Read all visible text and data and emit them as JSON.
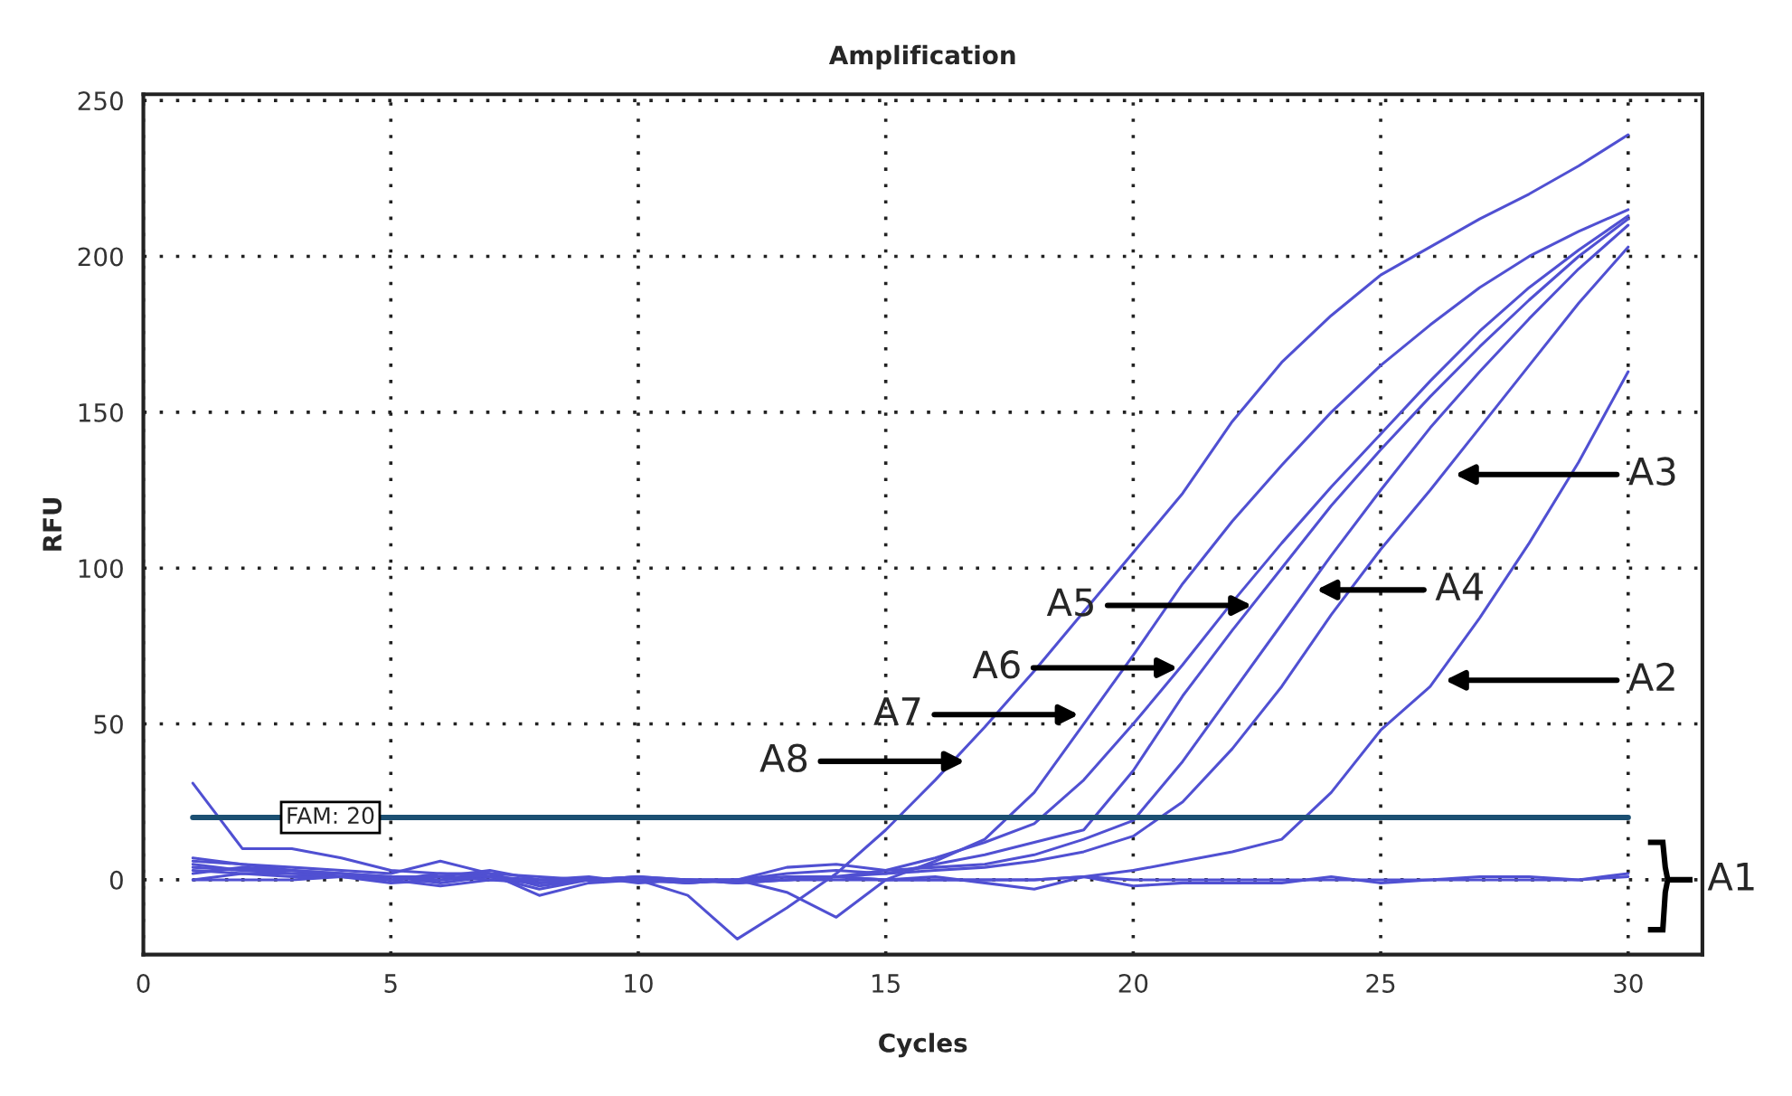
{
  "chart_data": {
    "type": "line",
    "title": "Amplification",
    "xlabel": "Cycles",
    "ylabel": "RFU",
    "x": [
      1,
      2,
      3,
      4,
      5,
      6,
      7,
      8,
      9,
      10,
      11,
      12,
      13,
      14,
      15,
      16,
      17,
      18,
      19,
      20,
      21,
      22,
      23,
      24,
      25,
      26,
      27,
      28,
      29,
      30
    ],
    "series": [
      {
        "color": "#5050d2",
        "values": [
          6,
          5,
          3,
          1,
          0,
          -2,
          0,
          -1,
          0,
          1,
          0,
          -1,
          0,
          0,
          0,
          1,
          -1,
          -3,
          1,
          -2,
          -1,
          -1,
          -1,
          1,
          -1,
          0,
          1,
          1,
          0,
          2
        ]
      },
      {
        "color": "#5050d2",
        "values": [
          0,
          0,
          0,
          1,
          -1,
          0,
          1,
          0,
          0,
          0,
          0,
          0,
          0,
          1,
          0,
          0,
          0,
          0,
          1,
          0,
          0,
          0,
          0,
          0,
          0,
          0,
          0,
          0,
          0,
          1
        ]
      },
      {
        "color": "#5050d2",
        "values": [
          0,
          2,
          1,
          1,
          1,
          -1,
          1,
          -3,
          0,
          1,
          -1,
          0,
          0,
          1,
          0,
          0,
          0,
          0,
          1,
          3,
          6,
          9,
          13,
          28,
          48,
          62,
          84,
          108,
          134,
          163
        ]
      },
      {
        "color": "#5050d2",
        "values": [
          2,
          4,
          3,
          2,
          0,
          1,
          3,
          0,
          1,
          -1,
          0,
          0,
          2,
          3,
          2,
          3,
          4,
          6,
          9,
          14,
          25,
          42,
          62,
          85,
          106,
          125,
          145,
          165,
          185,
          203
        ]
      },
      {
        "color": "#5050d2",
        "values": [
          5,
          3,
          2,
          2,
          1,
          0,
          2,
          -5,
          -1,
          0,
          -1,
          0,
          4,
          5,
          3,
          4,
          5,
          8,
          13,
          19,
          38,
          60,
          82,
          104,
          125,
          145,
          163,
          180,
          196,
          210
        ]
      },
      {
        "color": "#5050d2",
        "values": [
          7,
          5,
          4,
          3,
          2,
          6,
          2,
          -2,
          0,
          1,
          0,
          -1,
          0,
          1,
          2,
          5,
          8,
          12,
          16,
          35,
          59,
          80,
          100,
          120,
          138,
          155,
          171,
          186,
          200,
          212
        ]
      },
      {
        "color": "#5050d2",
        "values": [
          31,
          10,
          10,
          7,
          3,
          2,
          2,
          1,
          0,
          0,
          0,
          0,
          1,
          1,
          3,
          7,
          12,
          18,
          32,
          50,
          69,
          89,
          108,
          126,
          143,
          160,
          176,
          190,
          202,
          213
        ]
      },
      {
        "color": "#5050d2",
        "values": [
          3,
          2,
          2,
          1,
          0,
          2,
          1,
          -1,
          0,
          0,
          -1,
          0,
          -4,
          -12,
          0,
          6,
          13,
          28,
          50,
          72,
          95,
          115,
          133,
          150,
          165,
          178,
          190,
          200,
          208,
          215
        ]
      },
      {
        "color": "#5050d2",
        "values": [
          4,
          3,
          3,
          2,
          1,
          1,
          0,
          0,
          0,
          0,
          -5,
          -19,
          -9,
          2,
          16,
          32,
          49,
          67,
          86,
          105,
          124,
          147,
          166,
          181,
          194,
          203,
          212,
          220,
          229,
          239
        ]
      }
    ],
    "xlim": [
      0,
      31.5
    ],
    "ylim": [
      -24,
      252
    ],
    "xticks": [
      0,
      5,
      10,
      15,
      20,
      25,
      30
    ],
    "yticks": [
      0,
      50,
      100,
      150,
      200,
      250
    ],
    "grid": true,
    "marker": "none",
    "line_style": "solid",
    "ref_lines": [
      {
        "axis": "y",
        "value": 20,
        "label": "FAM: 20",
        "color": "#1b4f72",
        "line_style": "solid"
      }
    ],
    "annotations": [
      {
        "text": "A2",
        "x": 26.3,
        "y": 64
      },
      {
        "text": "A3",
        "x": 26.5,
        "y": 130
      },
      {
        "text": "A4",
        "x": 23.7,
        "y": 93
      },
      {
        "text": "A5",
        "x": 22.4,
        "y": 88
      },
      {
        "text": "A6",
        "x": 20.9,
        "y": 68
      },
      {
        "text": "A7",
        "x": 18.9,
        "y": 53
      },
      {
        "text": "A8",
        "x": 16.6,
        "y": 38
      },
      {
        "text": "A1",
        "x": 30,
        "y": 0
      }
    ]
  }
}
